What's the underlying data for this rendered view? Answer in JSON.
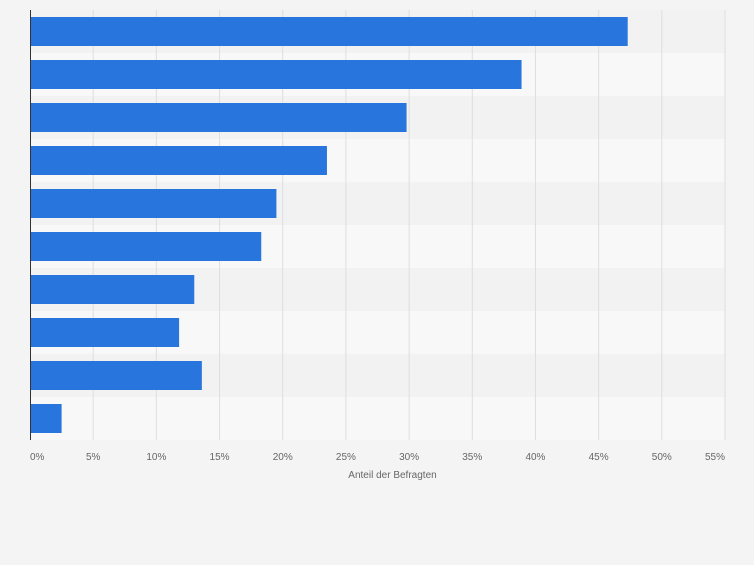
{
  "colors": {
    "background": "#f4f4f4",
    "band_light": "#f8f8f8",
    "band_dark": "#f2f2f2",
    "bar": "#2876dd",
    "grid": "#dedede",
    "axis": "#333333",
    "tick_text": "#666666"
  },
  "chart_data": {
    "type": "bar",
    "orientation": "horizontal",
    "title": "",
    "xlabel": "Anteil der Befragten",
    "ylabel": "",
    "categories": [
      "",
      "",
      "",
      "",
      "",
      "",
      "",
      "",
      "",
      ""
    ],
    "values": [
      47.3,
      38.9,
      29.8,
      23.5,
      19.5,
      18.3,
      13.0,
      11.8,
      13.6,
      2.5
    ],
    "xlim": [
      0,
      55
    ],
    "xticks": [
      0,
      5,
      10,
      15,
      20,
      25,
      30,
      35,
      40,
      45,
      50,
      55
    ],
    "xtick_labels": [
      "0%",
      "5%",
      "10%",
      "15%",
      "20%",
      "25%",
      "30%",
      "35%",
      "40%",
      "45%",
      "50%",
      "55%"
    ],
    "grid": true,
    "legend": "none"
  }
}
